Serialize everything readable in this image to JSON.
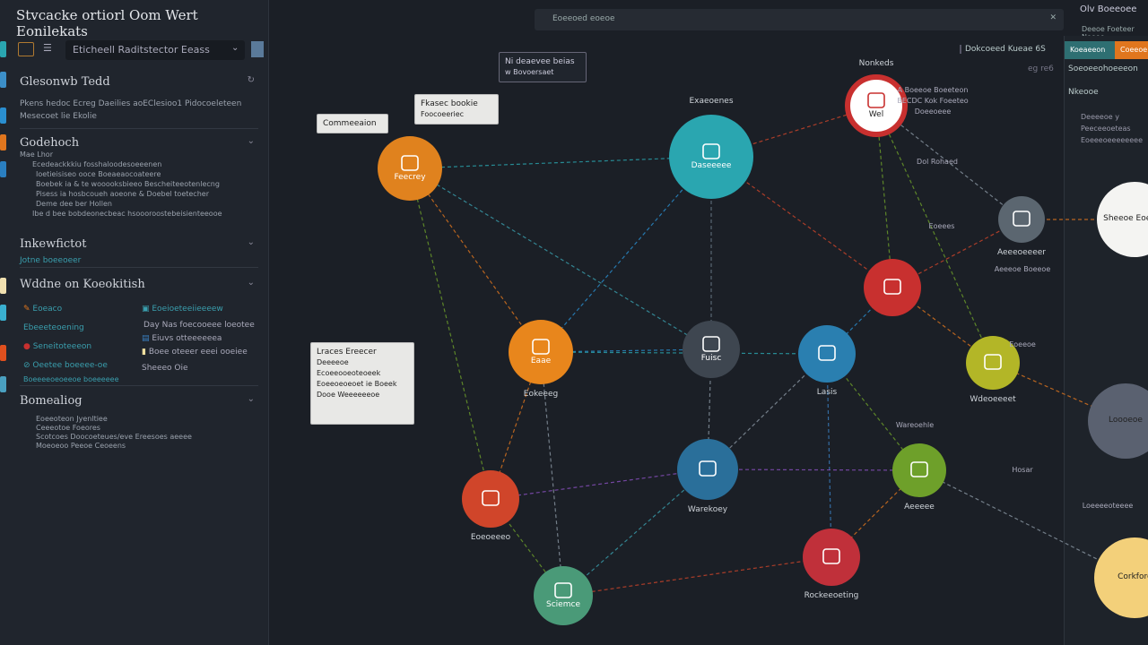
{
  "app": {
    "title": "Stvcacke ortiorl Oom Wert Eonilekats"
  },
  "sidebar": {
    "search_value": "Eticheell Raditstector Eeass",
    "sections": [
      {
        "title": "Glesonwb Tedd",
        "lines": [
          "Pkens hedoc Ecreg Daeilies aoEClesioo1 Pidocoeleteen",
          "Mesecoet lie Ekolie"
        ]
      },
      {
        "title": "Godehoch",
        "lines": [
          "Mae Lhor",
          "Ecedeackkkiu fosshaloodesoeeenen",
          "Ioetieisiseo ooce Boeaeaocoateere",
          "Boebek ia & te wooooksbieeo Bescheiteeotenlecng",
          "Pisess ia hosbcoueh aoeone & Doebel toetecher",
          "Deme dee ber Hollen",
          "Ibe d bee bobdeonecbeac hsoooroostebeisienteeooe"
        ]
      },
      {
        "title": "Inkewfictot",
        "lines": [
          "Jotne boeeoeer"
        ]
      },
      {
        "title": "Wddne on Koeokitish",
        "items_left": [
          "Eoeaco",
          "Ebeeeteoening",
          "Seneitoteeeon",
          "Oeetee boeeee-oe",
          "Boeeeeoeoeeoe boeeeeee"
        ],
        "items_right": [
          "Eoeioeteeiieeeew",
          "Day Nas foecooeee loeotee",
          "Eiuvs otteeeeeea",
          "Boee oteeer eeei ooeiee",
          "Sheeeo Oie"
        ]
      },
      {
        "title": "Bomealiog",
        "lines": [
          "Eoeeoteon Jyenltiee",
          "Ceeeotoe Foeores",
          "Scotcoes Doocoeteues/eve Ereesoes aeeee",
          "Moeoeoo Peeoe Ceoeens"
        ]
      }
    ]
  },
  "topbar": {
    "search_placeholder": "Eoeeoed eoeoe",
    "clear_icon": "close-icon",
    "right_text": "Olv Boeeoee",
    "right_sub": "Deeoe Foeteer Noeee"
  },
  "toolbar": {
    "readout": "Dokcoeed Kueae 6S",
    "sub": "eg re6"
  },
  "right_panel": {
    "tab1": "Koeaeeon",
    "tab2": "Coeeoe",
    "heading": "Soeoeeohoeeeon",
    "sub": "Nkeooe",
    "lines": [
      "Deeeeoe y",
      "Peeceeoeteas",
      "Eoeeeoeeeeeeee"
    ]
  },
  "colors": {
    "bg": "#1b1f26",
    "sidebar": "#20252d",
    "accent_teal": "#2e7f84",
    "accent_orange": "#e0761e"
  },
  "graph": {
    "nodes": [
      {
        "id": "n1",
        "label": "Feecrey",
        "caption": "",
        "color": "#e0821e"
      },
      {
        "id": "n2",
        "label": "Daseeeee",
        "caption": "Exaeoenes",
        "color": "#2aa6b0"
      },
      {
        "id": "n3",
        "label": "Wel",
        "caption": "Nonkeds",
        "color": "#ffffff"
      },
      {
        "id": "n4",
        "label": "",
        "caption": "Aeeeoeeeer",
        "color": "#5b6670"
      },
      {
        "id": "n5",
        "label": "",
        "caption": "",
        "color": "#c8302f"
      },
      {
        "id": "n6",
        "label": "Eaae",
        "caption": "Eokeeeg",
        "color": "#e8861c"
      },
      {
        "id": "n7",
        "label": "Fuisc",
        "caption": "",
        "color": "#3e4650"
      },
      {
        "id": "n8",
        "label": "",
        "caption": "Lasis",
        "color": "#2a7fb0"
      },
      {
        "id": "n9",
        "label": "",
        "caption": "Wdeoeeeet",
        "color": "#b3b627"
      },
      {
        "id": "n10",
        "label": "",
        "caption": "Warekoey",
        "color": "#2a6f9a"
      },
      {
        "id": "n11",
        "label": "",
        "caption": "Aeeeee",
        "color": "#6ea02a"
      },
      {
        "id": "n12",
        "label": "",
        "caption": "Eoeoeeeo",
        "color": "#d0452a"
      },
      {
        "id": "n13",
        "label": "",
        "caption": "Rockeeoeting",
        "color": "#c0303a"
      },
      {
        "id": "n14",
        "label": "Sciemce",
        "caption": "",
        "color": "#4a9a78"
      },
      {
        "id": "n15",
        "label": "Sheeoe Eoeeoe",
        "caption": "",
        "color": "#f4f4f2"
      },
      {
        "id": "n16",
        "label": "Loooeoe",
        "caption": "",
        "color": "#5a6170"
      },
      {
        "id": "n17",
        "label": "Corkforc",
        "caption": "",
        "color": "#f3d07a"
      }
    ],
    "annotations": [
      "A Boeeoe Boeeteon",
      "BECDC Kok Foeeteo",
      "Doeeoeee",
      "Dol Rohaed",
      "Eoeees",
      "Aeeeoe Boeeoe",
      "Eoeeoe",
      "Wareoehle",
      "Hosar",
      "Loeeeeoteeee"
    ],
    "callouts": [
      {
        "title": "Commeeaion",
        "lines": []
      },
      {
        "title": "Fkasec bookie",
        "lines": [
          "Foocoeeriec"
        ]
      },
      {
        "title": "Ni deaevee beias",
        "lines": [
          "w Bovoersaet"
        ]
      },
      {
        "title": "Lraces Ereecer",
        "lines": [
          "Deeeeoe",
          "Ecoeeooeoteoeek",
          "Eoeeoeoeoet ie Boeek",
          "Dooe Weeeeeeoe"
        ]
      }
    ]
  }
}
